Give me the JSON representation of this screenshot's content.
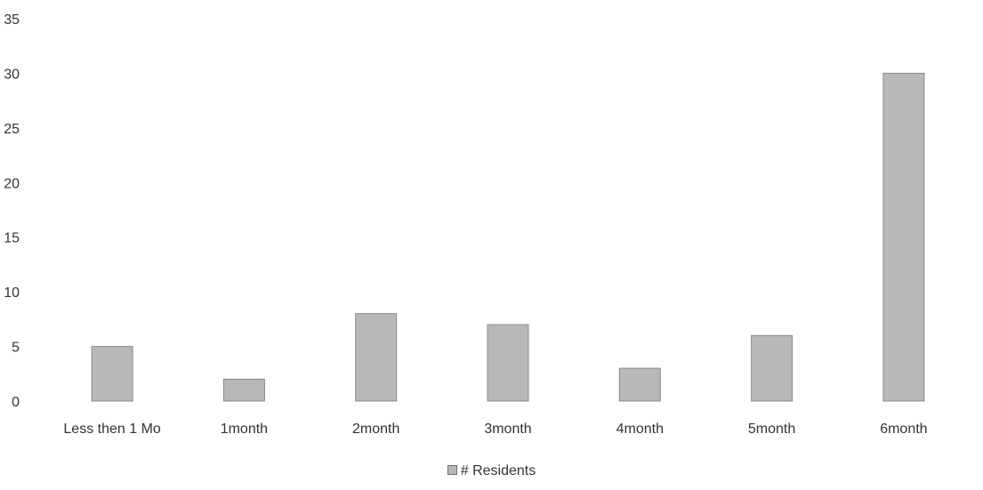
{
  "chart_data": {
    "type": "bar",
    "title": "",
    "xlabel": "",
    "ylabel": "",
    "categories": [
      "Less then 1 Mo",
      "1month",
      "2month",
      "3month",
      "4month",
      "5month",
      "6month"
    ],
    "series": [
      {
        "name": "# Residents",
        "values": [
          5,
          2,
          8,
          7,
          3,
          6,
          30
        ]
      }
    ],
    "ylim": [
      0,
      35
    ],
    "yticks": [
      0,
      5,
      10,
      15,
      20,
      25,
      30,
      35
    ],
    "grid": false,
    "legend": "bottom-center",
    "colors": {
      "bar": "#b8b8b8",
      "bar_stroke": "#8a8a8a",
      "text": "#333333"
    }
  },
  "legend": {
    "label": "# Residents"
  }
}
